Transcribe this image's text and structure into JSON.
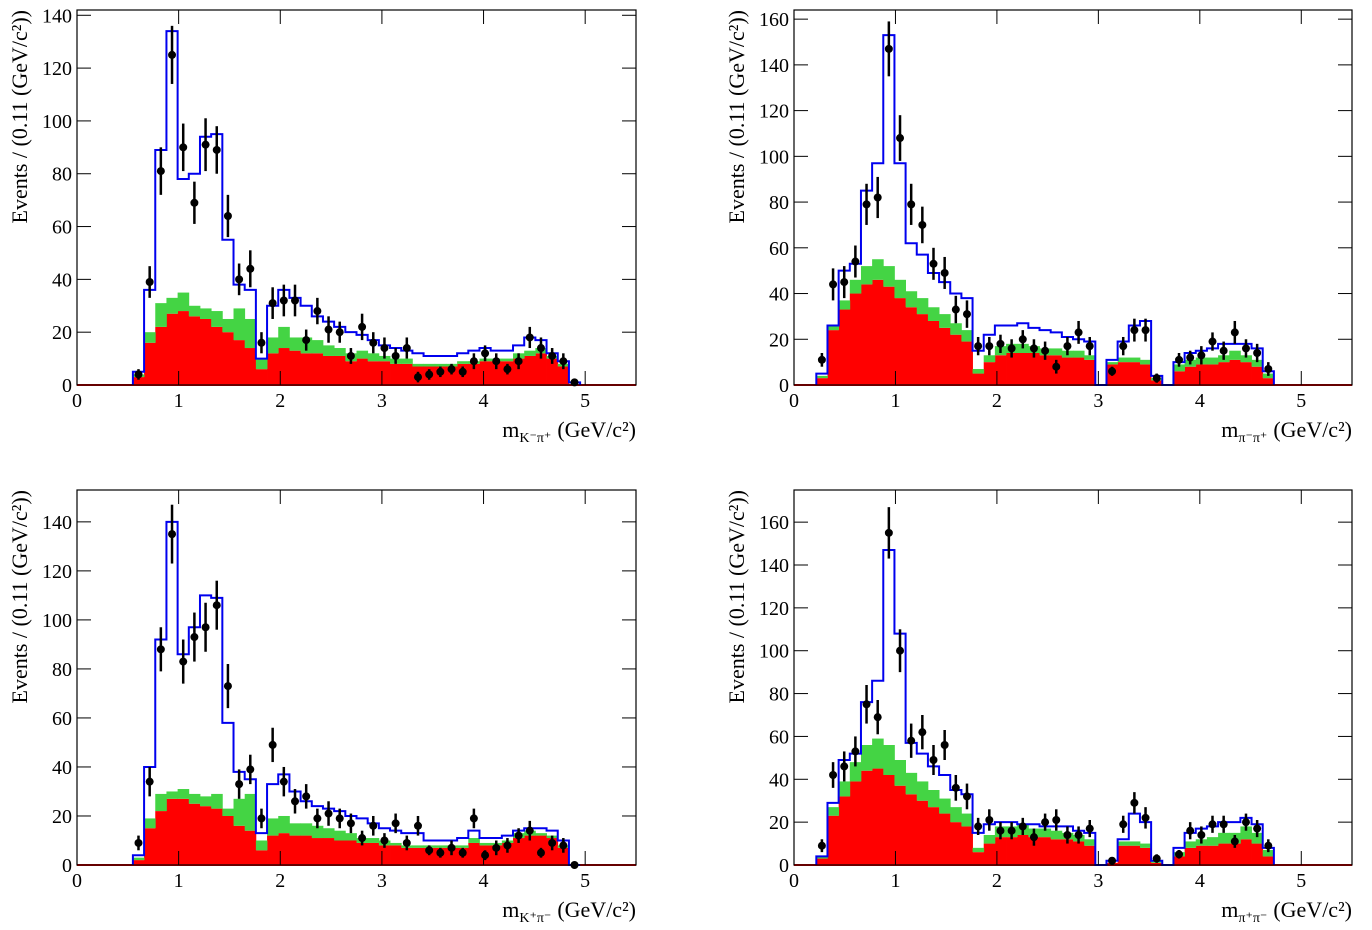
{
  "chart_data": [
    {
      "type": "histogram",
      "ylabel": "Events / (0.11 (GeV/c²))",
      "xlabel": "m",
      "xlabel_sub": "K⁻π⁺",
      "xlabel_unit": "(GeV/c²)",
      "xlim": [
        0,
        5.5
      ],
      "xticks": [
        0,
        1,
        2,
        3,
        4,
        5
      ],
      "ylim": [
        0,
        142
      ],
      "yticks": [
        0,
        20,
        40,
        60,
        80,
        100,
        120,
        140
      ],
      "bins": [
        0.55,
        0.66,
        0.77,
        0.88,
        0.99,
        1.1,
        1.21,
        1.32,
        1.43,
        1.54,
        1.65,
        1.76,
        1.87,
        1.98,
        2.09,
        2.2,
        2.31,
        2.42,
        2.53,
        2.64,
        2.75,
        2.86,
        2.97,
        3.08,
        3.19,
        3.3,
        3.41,
        3.52,
        3.63,
        3.74,
        3.85,
        3.96,
        4.07,
        4.18,
        4.29,
        4.4,
        4.51,
        4.62,
        4.73,
        4.84,
        4.95
      ],
      "series": [
        {
          "style": "fill",
          "color": "#ff0000",
          "values": [
            3,
            16,
            22,
            27,
            28,
            26,
            25,
            22,
            20,
            17,
            14,
            6,
            12,
            14,
            13,
            12,
            12,
            11,
            11,
            9,
            10,
            9,
            9,
            8,
            8,
            7,
            7,
            7,
            7,
            8,
            8,
            9,
            9,
            9,
            10,
            11,
            12,
            10,
            7,
            0
          ]
        },
        {
          "style": "fill",
          "color": "#44d444",
          "values": [
            1,
            4,
            9,
            6,
            7,
            4,
            4,
            6,
            5,
            12,
            11,
            4,
            6,
            8,
            5,
            6,
            5,
            4,
            3,
            3,
            3,
            3,
            2,
            2,
            2,
            1,
            1,
            1,
            1,
            1,
            1,
            1,
            1,
            1,
            2,
            2,
            2,
            1,
            1,
            0
          ]
        },
        {
          "style": "step",
          "color": "#0000ee",
          "values": [
            5,
            36,
            89,
            134,
            78,
            80,
            94,
            95,
            55,
            38,
            36,
            10,
            30,
            36,
            33,
            30,
            26,
            24,
            22,
            20,
            19,
            17,
            15,
            14,
            13,
            12,
            11,
            11,
            11,
            12,
            13,
            14,
            13,
            13,
            15,
            18,
            17,
            12,
            9,
            1
          ]
        },
        {
          "style": "points",
          "color": "#000000",
          "values": [
            4,
            39,
            81,
            125,
            90,
            69,
            91,
            89,
            64,
            40,
            44,
            16,
            31,
            32,
            32,
            17,
            28,
            21,
            20,
            11,
            22,
            16,
            14,
            11,
            14,
            3,
            4,
            5,
            6,
            5,
            9,
            12,
            9,
            6,
            9,
            18,
            14,
            11,
            9,
            1
          ],
          "errors": [
            2,
            6,
            9,
            11,
            9,
            8,
            10,
            9,
            8,
            6,
            7,
            4,
            6,
            6,
            6,
            4,
            5,
            5,
            4,
            3,
            5,
            4,
            4,
            3,
            4,
            2,
            2,
            2,
            2,
            2,
            3,
            3,
            3,
            2,
            3,
            4,
            4,
            3,
            3,
            1
          ]
        }
      ]
    },
    {
      "type": "histogram",
      "ylabel": "Events / (0.11 (GeV/c²))",
      "xlabel": "m",
      "xlabel_sub": "π⁻π⁺",
      "xlabel_unit": "(GeV/c²)",
      "xlim": [
        0,
        5.5
      ],
      "xticks": [
        0,
        1,
        2,
        3,
        4,
        5
      ],
      "ylim": [
        0,
        164
      ],
      "yticks": [
        0,
        20,
        40,
        60,
        80,
        100,
        120,
        140,
        160
      ],
      "bins": [
        0.22,
        0.33,
        0.44,
        0.55,
        0.66,
        0.77,
        0.88,
        0.99,
        1.1,
        1.21,
        1.32,
        1.43,
        1.54,
        1.65,
        1.76,
        1.87,
        1.98,
        2.09,
        2.2,
        2.31,
        2.42,
        2.53,
        2.64,
        2.75,
        2.86,
        2.97,
        3.08,
        3.19,
        3.3,
        3.41,
        3.52,
        3.63,
        3.74,
        3.85,
        3.96,
        4.07,
        4.18,
        4.29,
        4.4,
        4.51,
        4.62,
        4.73
      ],
      "series": [
        {
          "style": "fill",
          "color": "#ff0000",
          "values": [
            3,
            24,
            33,
            40,
            44,
            46,
            43,
            38,
            34,
            31,
            28,
            25,
            22,
            19,
            5,
            10,
            13,
            14,
            14,
            14,
            13,
            13,
            12,
            12,
            11,
            0,
            9,
            10,
            10,
            9,
            2,
            0,
            6,
            8,
            9,
            9,
            10,
            11,
            10,
            8,
            3
          ]
        },
        {
          "style": "fill",
          "color": "#44d444",
          "values": [
            1,
            2,
            4,
            6,
            8,
            9,
            9,
            8,
            7,
            7,
            6,
            6,
            5,
            5,
            2,
            3,
            4,
            4,
            4,
            3,
            3,
            3,
            3,
            3,
            2,
            0,
            1,
            2,
            2,
            2,
            1,
            0,
            3,
            3,
            3,
            3,
            3,
            4,
            3,
            3,
            2
          ]
        },
        {
          "style": "step",
          "color": "#0000ee",
          "values": [
            5,
            26,
            50,
            53,
            85,
            97,
            153,
            97,
            62,
            57,
            49,
            45,
            40,
            38,
            15,
            22,
            26,
            26,
            27,
            25,
            24,
            23,
            21,
            20,
            19,
            0,
            11,
            19,
            26,
            28,
            4,
            0,
            10,
            14,
            15,
            16,
            18,
            18,
            18,
            16,
            6
          ]
        },
        {
          "style": "points",
          "color": "#000000",
          "values": [
            11,
            44,
            45,
            54,
            79,
            82,
            147,
            108,
            79,
            70,
            53,
            49,
            33,
            31,
            17,
            17,
            18,
            16,
            20,
            16,
            15,
            8,
            17,
            23,
            17,
            null,
            6,
            17,
            24,
            24,
            3,
            null,
            11,
            12,
            13,
            19,
            15,
            23,
            16,
            14,
            7
          ],
          "errors": [
            3,
            7,
            7,
            7,
            9,
            9,
            12,
            10,
            9,
            8,
            7,
            7,
            6,
            6,
            4,
            4,
            4,
            4,
            4,
            4,
            4,
            3,
            4,
            5,
            4,
            null,
            2,
            4,
            5,
            5,
            2,
            null,
            3,
            3,
            4,
            4,
            4,
            5,
            4,
            4,
            3
          ]
        }
      ]
    },
    {
      "type": "histogram",
      "ylabel": "Events / (0.11 (GeV/c²))",
      "xlabel": "m",
      "xlabel_sub": "K⁺π⁻",
      "xlabel_unit": "(GeV/c²)",
      "xlim": [
        0,
        5.5
      ],
      "xticks": [
        0,
        1,
        2,
        3,
        4,
        5
      ],
      "ylim": [
        0,
        153
      ],
      "yticks": [
        0,
        20,
        40,
        60,
        80,
        100,
        120,
        140
      ],
      "bins": [
        0.55,
        0.66,
        0.77,
        0.88,
        0.99,
        1.1,
        1.21,
        1.32,
        1.43,
        1.54,
        1.65,
        1.76,
        1.87,
        1.98,
        2.09,
        2.2,
        2.31,
        2.42,
        2.53,
        2.64,
        2.75,
        2.86,
        2.97,
        3.08,
        3.19,
        3.3,
        3.41,
        3.52,
        3.63,
        3.74,
        3.85,
        3.96,
        4.07,
        4.18,
        4.29,
        4.4,
        4.51,
        4.62,
        4.73,
        4.84,
        4.95
      ],
      "series": [
        {
          "style": "fill",
          "color": "#ff0000",
          "values": [
            2,
            15,
            22,
            27,
            27,
            25,
            24,
            23,
            20,
            16,
            14,
            6,
            12,
            13,
            12,
            12,
            11,
            11,
            10,
            10,
            9,
            9,
            8,
            8,
            7,
            7,
            7,
            7,
            7,
            7,
            9,
            8,
            8,
            9,
            11,
            12,
            12,
            11,
            7,
            0
          ]
        },
        {
          "style": "fill",
          "color": "#44d444",
          "values": [
            1,
            4,
            7,
            3,
            4,
            4,
            4,
            6,
            3,
            11,
            15,
            4,
            7,
            7,
            5,
            5,
            5,
            4,
            4,
            3,
            2,
            2,
            2,
            1,
            1,
            1,
            1,
            1,
            1,
            1,
            2,
            1,
            1,
            1,
            2,
            2,
            1,
            1,
            1,
            0
          ]
        },
        {
          "style": "step",
          "color": "#0000ee",
          "values": [
            4,
            40,
            92,
            140,
            86,
            97,
            110,
            109,
            58,
            38,
            35,
            13,
            33,
            37,
            30,
            26,
            24,
            23,
            22,
            20,
            19,
            17,
            15,
            14,
            13,
            13,
            10,
            10,
            10,
            11,
            14,
            11,
            11,
            12,
            14,
            15,
            15,
            14,
            10,
            0
          ]
        },
        {
          "style": "points",
          "color": "#000000",
          "values": [
            9,
            34,
            88,
            135,
            83,
            93,
            97,
            106,
            73,
            33,
            39,
            19,
            49,
            34,
            26,
            28,
            19,
            21,
            19,
            17,
            11,
            16,
            10,
            17,
            9,
            16,
            6,
            5,
            7,
            5,
            19,
            4,
            7,
            8,
            12,
            14,
            5,
            9,
            8,
            0
          ],
          "errors": [
            3,
            6,
            9,
            12,
            9,
            10,
            10,
            10,
            9,
            6,
            6,
            4,
            7,
            6,
            5,
            5,
            4,
            5,
            4,
            4,
            3,
            4,
            3,
            4,
            3,
            4,
            2,
            2,
            3,
            2,
            4,
            2,
            3,
            3,
            3,
            4,
            2,
            3,
            3,
            0
          ]
        }
      ]
    },
    {
      "type": "histogram",
      "ylabel": "Events / (0.11 (GeV/c²))",
      "xlabel": "m",
      "xlabel_sub": "π⁺π⁻",
      "xlabel_unit": "(GeV/c²)",
      "xlim": [
        0,
        5.5
      ],
      "xticks": [
        0,
        1,
        2,
        3,
        4,
        5
      ],
      "ylim": [
        0,
        175
      ],
      "yticks": [
        0,
        20,
        40,
        60,
        80,
        100,
        120,
        140,
        160
      ],
      "bins": [
        0.22,
        0.33,
        0.44,
        0.55,
        0.66,
        0.77,
        0.88,
        0.99,
        1.1,
        1.21,
        1.32,
        1.43,
        1.54,
        1.65,
        1.76,
        1.87,
        1.98,
        2.09,
        2.2,
        2.31,
        2.42,
        2.53,
        2.64,
        2.75,
        2.86,
        2.97,
        3.08,
        3.19,
        3.3,
        3.41,
        3.52,
        3.63,
        3.74,
        3.85,
        3.96,
        4.07,
        4.18,
        4.29,
        4.4,
        4.51,
        4.62,
        4.73
      ],
      "series": [
        {
          "style": "fill",
          "color": "#ff0000",
          "values": [
            3,
            23,
            32,
            39,
            44,
            45,
            42,
            37,
            33,
            30,
            27,
            24,
            20,
            18,
            6,
            10,
            13,
            13,
            14,
            13,
            13,
            12,
            12,
            11,
            9,
            0,
            1,
            9,
            9,
            8,
            1,
            0,
            4,
            8,
            9,
            9,
            10,
            10,
            12,
            10,
            4
          ]
        },
        {
          "style": "fill",
          "color": "#44d444",
          "values": [
            1,
            4,
            7,
            9,
            12,
            14,
            14,
            12,
            10,
            9,
            8,
            7,
            7,
            6,
            2,
            4,
            5,
            5,
            5,
            4,
            4,
            4,
            3,
            3,
            3,
            0,
            0,
            2,
            2,
            2,
            1,
            0,
            2,
            3,
            3,
            4,
            5,
            5,
            6,
            5,
            3
          ]
        },
        {
          "style": "step",
          "color": "#0000ee",
          "values": [
            4,
            29,
            49,
            52,
            76,
            86,
            147,
            108,
            57,
            52,
            46,
            42,
            35,
            33,
            15,
            19,
            20,
            20,
            19,
            19,
            18,
            18,
            18,
            16,
            15,
            0,
            2,
            12,
            24,
            20,
            2,
            0,
            8,
            15,
            17,
            18,
            20,
            20,
            22,
            19,
            8
          ]
        },
        {
          "style": "points",
          "color": "#000000",
          "values": [
            9,
            42,
            46,
            53,
            75,
            69,
            155,
            100,
            58,
            62,
            49,
            56,
            36,
            32,
            18,
            21,
            16,
            16,
            18,
            13,
            20,
            21,
            14,
            14,
            17,
            null,
            2,
            19,
            29,
            22,
            3,
            null,
            5,
            16,
            14,
            19,
            19,
            11,
            20,
            17,
            9
          ],
          "errors": [
            3,
            6,
            7,
            7,
            9,
            8,
            12,
            10,
            8,
            8,
            7,
            7,
            6,
            6,
            4,
            5,
            4,
            4,
            4,
            4,
            4,
            5,
            4,
            4,
            4,
            null,
            1,
            4,
            5,
            5,
            2,
            null,
            2,
            4,
            4,
            4,
            4,
            3,
            4,
            4,
            3
          ]
        }
      ]
    }
  ]
}
